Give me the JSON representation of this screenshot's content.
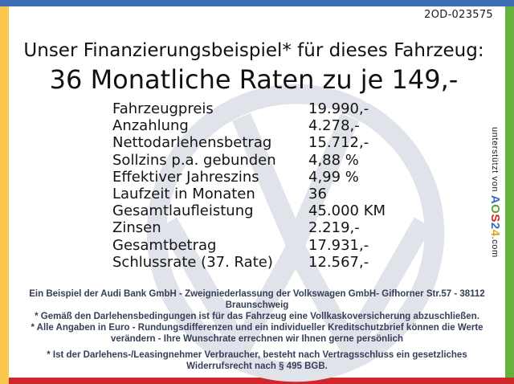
{
  "page": {
    "doc_number": "2OD-023575"
  },
  "header": {
    "title_line1": "Unser Finanzierungsbeispiel* für dieses Fahrzeug:",
    "title_line2": "36 Monatliche Raten zu je 149,-"
  },
  "finance_table": {
    "rows": [
      {
        "label": "Fahrzeugpreis",
        "value": "19.990,-"
      },
      {
        "label": "Anzahlung",
        "value": "4.278,-"
      },
      {
        "label": "Nettodarlehensbetrag",
        "value": "15.712,-"
      },
      {
        "label": "Sollzins p.a. gebunden",
        "value": "4,88 %"
      },
      {
        "label": "Effektiver Jahreszins",
        "value": "4,99 %"
      },
      {
        "label": "Laufzeit in Monaten",
        "value": "36"
      },
      {
        "label": "Gesamtlaufleistung",
        "value": "45.000 KM"
      },
      {
        "label": "Zinsen",
        "value": "2.219,-"
      },
      {
        "label": "Gesamtbetrag",
        "value": "17.931,-"
      },
      {
        "label": "Schlussrate (37. Rate)",
        "value": "12.567,-"
      }
    ]
  },
  "footer": {
    "paragraphs": [
      "Ein Beispiel der Audi Bank GmbH - Zweigniederlassung der Volkswagen GmbH- Gifhorner Str.57 - 38112 Braunschweig",
      "* Gemäß den Darlehensbedingungen ist für das Fahrzeug eine Vollkaskoversicherung abzuschließen.",
      "* Alle Angaben in Euro - Rundungsdifferenzen und ein individueller Kreditschutzbrief können die Werte verändern - Ihre Wunschrate errechnen wir Ihnen gerne persönlich",
      "* Ist der Darlehens-/Leasingnehmer Verbraucher, besteht nach Vertragsschluss ein gesetzliches Widerrufsrecht nach § 495 BGB."
    ]
  },
  "sidebar": {
    "supported_by": "unterstützt von ",
    "brand_letters": [
      {
        "ch": "A",
        "color": "#3c6cc0"
      },
      {
        "ch": "O",
        "color": "#5aa32e"
      },
      {
        "ch": "S",
        "color": "#d5231d"
      },
      {
        "ch": "2",
        "color": "#3c6cc0"
      },
      {
        "ch": "4",
        "color": "#d9a71e"
      }
    ],
    "brand_suffix": ".com"
  },
  "colors": {
    "bar_top": "#3c6cb4",
    "bar_left": "#fbc74d",
    "bar_right": "#66b23c",
    "bar_bottom": "#d1252c",
    "footer_text": "#343f58",
    "watermark": "#e1e3ea"
  }
}
